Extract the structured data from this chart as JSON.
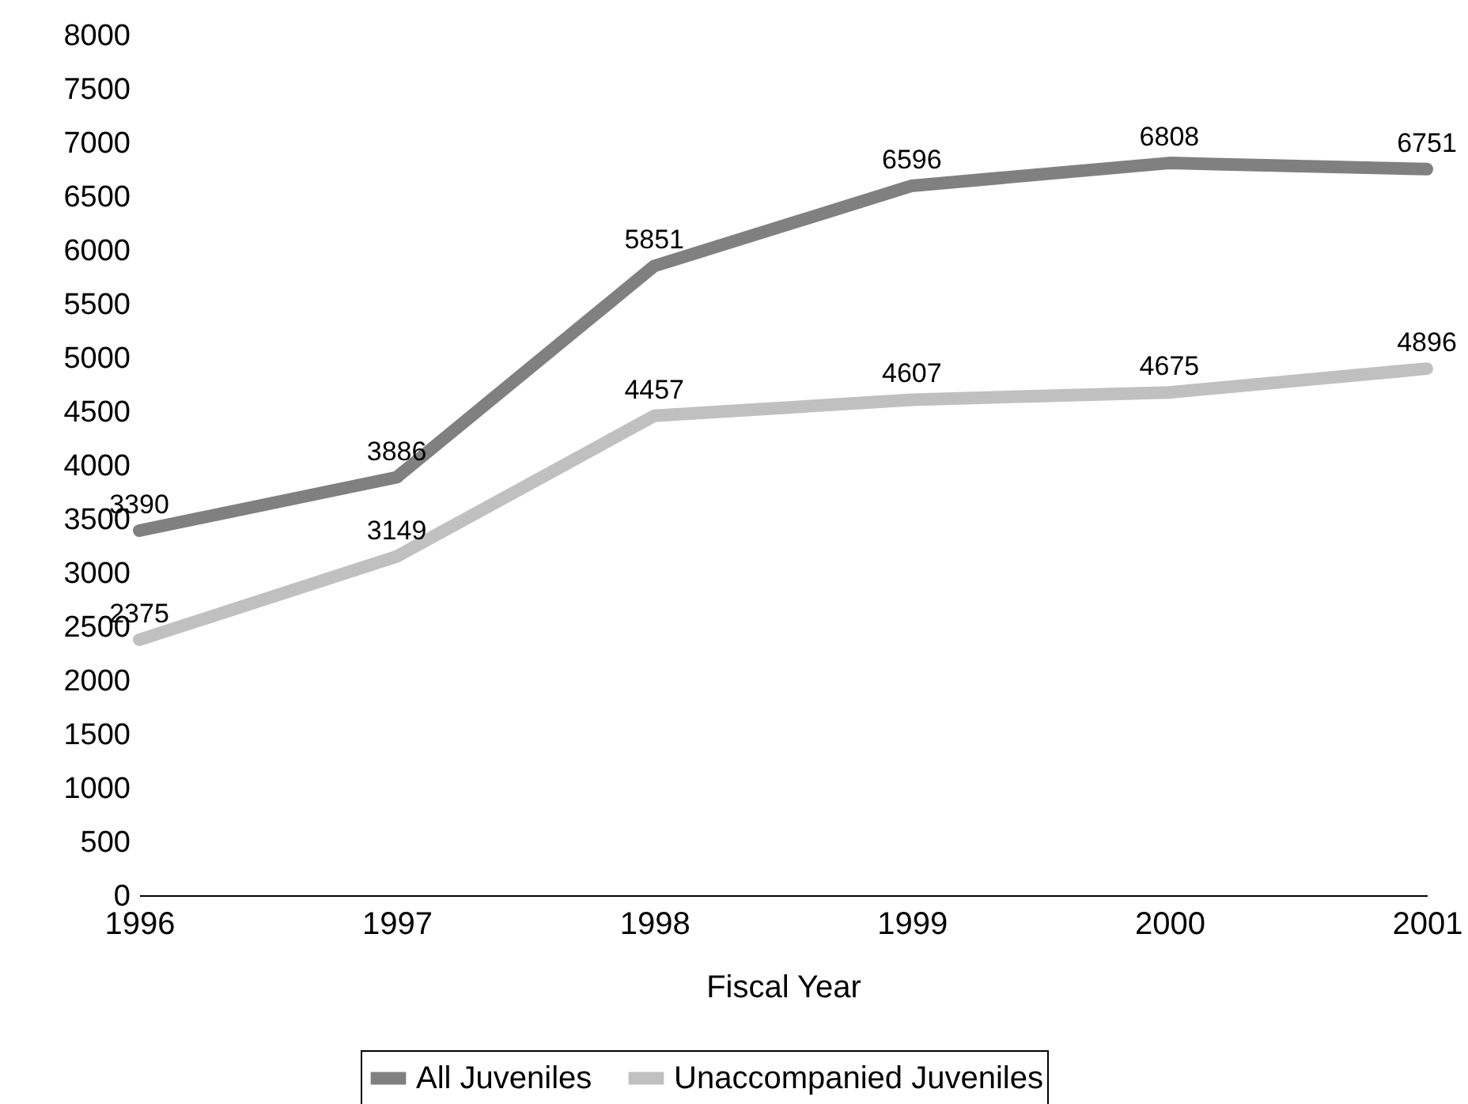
{
  "chart_data": {
    "type": "line",
    "xlabel": "Fiscal Year",
    "x": [
      1996,
      1997,
      1998,
      1999,
      2000,
      2001
    ],
    "xlim": [
      1996,
      2001
    ],
    "xticks": [
      1996,
      1997,
      1998,
      1999,
      2000,
      2001
    ],
    "ylim": [
      0,
      8000
    ],
    "yticks": [
      0,
      500,
      1000,
      1500,
      2000,
      2500,
      3000,
      3500,
      4000,
      4500,
      5000,
      5500,
      6000,
      6500,
      7000,
      7500,
      8000
    ],
    "series": [
      {
        "name": "All Juveniles",
        "color": "#808080",
        "values": [
          3390,
          3886,
          5851,
          6596,
          6808,
          6751
        ]
      },
      {
        "name": "Unaccompanied Juveniles",
        "color": "#c0c0c0",
        "values": [
          2375,
          3149,
          4457,
          4607,
          4675,
          4896
        ]
      }
    ],
    "data_labels": true,
    "grid": false,
    "legend": "bottom",
    "marker": "none",
    "line_style": "solid"
  }
}
